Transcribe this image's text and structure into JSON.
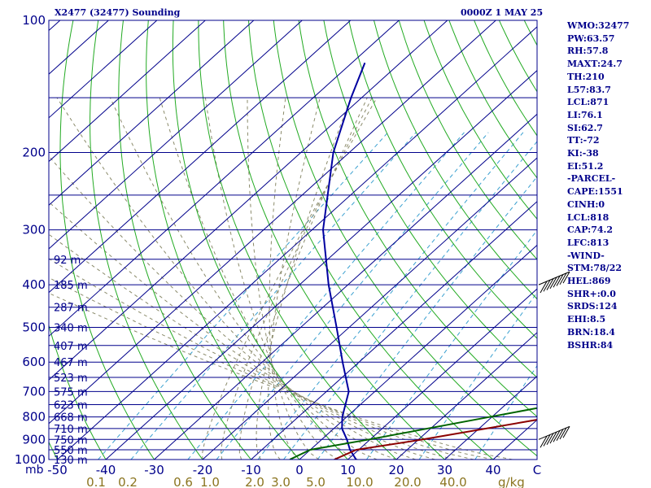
{
  "header": {
    "station": "X2477 (32477) Sounding",
    "time": "0000Z  1 MAY 25"
  },
  "indices": [
    "WMO:32477",
    "PW:63.57",
    "RH:57.8",
    "MAXT:24.7",
    "TH:210",
    "L57:83.7",
    "LCL:871",
    "LI:76.1",
    "SI:62.7",
    "TT:-72",
    "KI:-38",
    "EI:51.2",
    "-PARCEL-",
    "CAPE:1551",
    "CINH:0",
    "LCL:818",
    "CAP:74.2",
    "LFC:813",
    "-WIND-",
    "STM:78/22",
    "HEL:869",
    "SHR+:0.0",
    "SRDS:124",
    "EHI:8.5",
    "BRN:18.4",
    "BSHR:84"
  ],
  "colors": {
    "isobar": "#00008b",
    "isotherm": "#00008b",
    "dry_adiabat": "#22aa22",
    "moist_adiabat": "#8b8b6b",
    "mixing_ratio": "#3aa0d0",
    "temperature": "#8b0000",
    "dewpoint": "#006400",
    "virtual_temp_profile": "#0000a0",
    "mixing_label": "#8b7520"
  },
  "chart_data": {
    "type": "skew-t",
    "title": "X2477 (32477) Sounding",
    "x_unit_label": "C",
    "y_unit_label": "mb",
    "mixing_ratio_unit": "g/kg",
    "pressure_ticks": [
      100,
      200,
      300,
      400,
      500,
      600,
      700,
      800,
      900,
      1000
    ],
    "isobars": [
      100,
      150,
      200,
      250,
      300,
      350,
      400,
      450,
      500,
      550,
      600,
      650,
      700,
      750,
      800,
      850,
      900,
      950,
      1000
    ],
    "temperature_ticks": [
      -50,
      -40,
      -30,
      -20,
      -10,
      0,
      10,
      20,
      30,
      40,
      "C"
    ],
    "mixing_ratio_labels": [
      "0.1",
      "0.2",
      "0.6",
      "1.0",
      "2.0",
      "3.0",
      "5.0",
      "10.0",
      "20.0",
      "40.0"
    ],
    "height_labels": [
      {
        "p": 350,
        "text": "92 m"
      },
      {
        "p": 400,
        "text": "185 m"
      },
      {
        "p": 450,
        "text": "287 m"
      },
      {
        "p": 500,
        "text": "340 m"
      },
      {
        "p": 550,
        "text": "407 m"
      },
      {
        "p": 600,
        "text": "467 m"
      },
      {
        "p": 650,
        "text": "523 m"
      },
      {
        "p": 700,
        "text": "575 m"
      },
      {
        "p": 750,
        "text": "623 m"
      },
      {
        "p": 800,
        "text": "668 m"
      },
      {
        "p": 850,
        "text": "710 m"
      },
      {
        "p": 900,
        "text": "750 m"
      },
      {
        "p": 950,
        "text": "550 m"
      },
      {
        "p": 1000,
        "text": "130 m"
      }
    ],
    "series": [
      {
        "name": "",
        "color": "#0000a0",
        "points": [
          [
            1000,
            11.7
          ],
          [
            950,
            8.2
          ],
          [
            900,
            5.2
          ],
          [
            850,
            1.7
          ],
          [
            800,
            -0.9
          ],
          [
            700,
            -5.4
          ],
          [
            600,
            -13.4
          ],
          [
            500,
            -22.6
          ],
          [
            400,
            -34.0
          ],
          [
            300,
            -47.7
          ],
          [
            200,
            -63.3
          ],
          [
            150,
            -72.2
          ],
          [
            125,
            -77.3
          ]
        ]
      },
      {
        "name": "",
        "color": "#8b0000",
        "points": [
          [
            1000,
            7.2
          ],
          [
            950,
            9.5
          ],
          [
            900,
            20.9
          ],
          [
            800,
            42.6
          ],
          [
            700,
            67.0
          ]
        ]
      },
      {
        "name": "",
        "color": "#006400",
        "points": [
          [
            1000,
            -2.0
          ],
          [
            950,
            0.0
          ],
          [
            900,
            9.8
          ],
          [
            800,
            29.5
          ],
          [
            650,
            64.2
          ]
        ]
      }
    ],
    "wind_barbs": [
      {
        "p": 400,
        "speed_kt": 75
      },
      {
        "p": 900,
        "speed_kt": 75
      }
    ]
  }
}
